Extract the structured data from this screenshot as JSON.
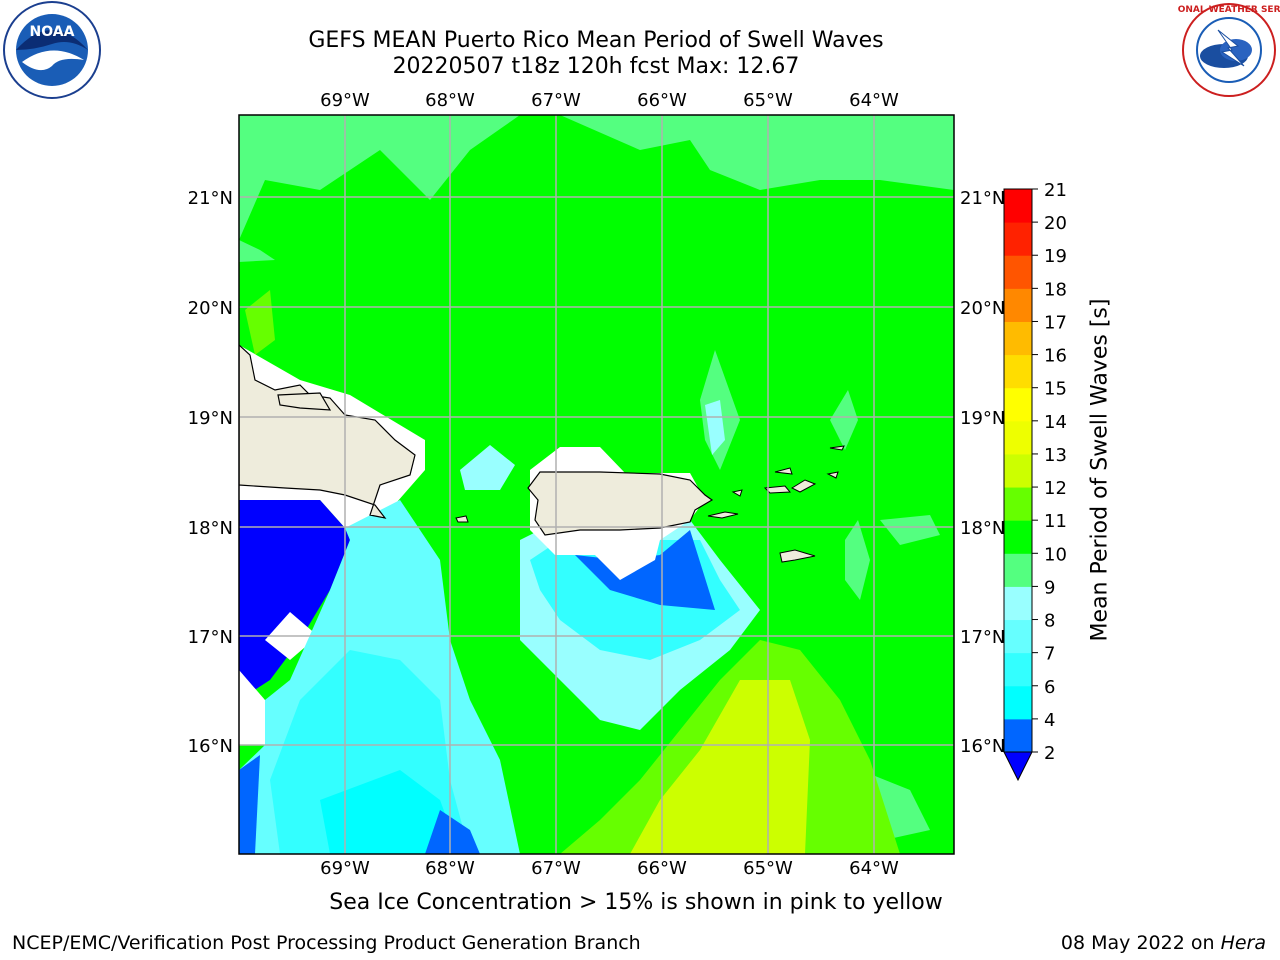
{
  "header": {
    "title_line1": "GEFS MEAN Puerto Rico Mean Period of Swell Waves",
    "title_line2": "20220507 t18z 120h fcst   Max: 12.67"
  },
  "map": {
    "lon_ticks": [
      "69°W",
      "68°W",
      "67°W",
      "66°W",
      "65°W",
      "64°W"
    ],
    "lat_ticks": [
      "21°N",
      "20°N",
      "19°N",
      "18°N",
      "17°N",
      "16°N"
    ],
    "land_color": "#eeecdc",
    "masked_color": "#ffffff"
  },
  "colorbar": {
    "label": "Mean Period of Swell Waves [s]",
    "ticks": [
      "2",
      "4",
      "6",
      "7",
      "8",
      "9",
      "10",
      "11",
      "12",
      "13",
      "14",
      "15",
      "16",
      "17",
      "18",
      "19",
      "20",
      "21"
    ],
    "colors": [
      "#0000ff",
      "#0066ff",
      "#00ffff",
      "#33ffff",
      "#66ffff",
      "#99ffff",
      "#54ff80",
      "#00ff00",
      "#66ff00",
      "#ccff00",
      "#eeff00",
      "#ffff00",
      "#ffdd00",
      "#ffbb00",
      "#ff8800",
      "#ff5500",
      "#ff2200",
      "#ff0000"
    ]
  },
  "footer": {
    "note": "Sea Ice Concentration > 15% is shown in pink to yellow",
    "credit": "NCEP/EMC/Verification Post Processing Product Generation Branch",
    "date": "08 May 2022 on",
    "machine": "Hera"
  },
  "logos": {
    "noaa_text": "NOAA",
    "nws_text": "NATIONAL WEATHER SERVICE"
  }
}
